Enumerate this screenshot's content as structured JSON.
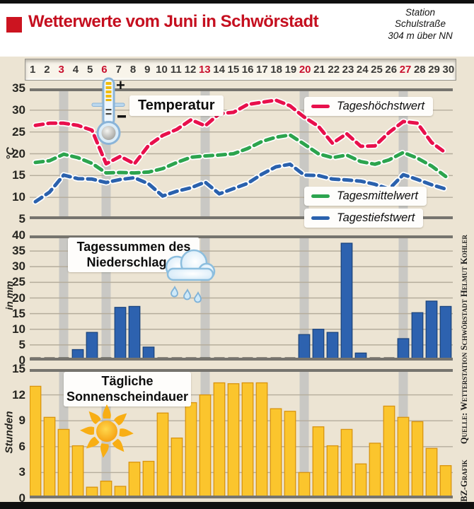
{
  "header": {
    "title": "Wetterwerte vom Juni in Schwörstadt",
    "station_lines": [
      "Station",
      "Schulstraße",
      "304 m über NN"
    ]
  },
  "day_axis": {
    "days": [
      1,
      2,
      3,
      4,
      5,
      6,
      7,
      8,
      9,
      10,
      11,
      12,
      13,
      14,
      15,
      16,
      17,
      18,
      19,
      20,
      21,
      22,
      23,
      24,
      25,
      26,
      27,
      28,
      29,
      30
    ],
    "highlight_days": [
      3,
      6,
      13,
      20,
      27
    ]
  },
  "colors": {
    "accent_red": "#c50f1f",
    "day_red": "#c8102e",
    "beige_bg": "#ece4d3",
    "band_gray": "#c9c8c4",
    "gridline": "#b5ad9c",
    "axis_dark": "#76746e",
    "baseline_dash": "#55524a",
    "line_casing": "#ffffff",
    "temp_max_red": "#e8104c",
    "temp_mean_green": "#2ca44e",
    "temp_min_blue": "#2a61ad",
    "rain_bar": "#2d62af",
    "rain_bar_border": "#1c457e",
    "sun_bar": "#fbc52d",
    "sun_bar_border": "#d9940f"
  },
  "source": {
    "quelle": "Quelle: Wetterstation Schwörstadt Helmut Kohler",
    "credit": "BZ-Grafik"
  },
  "chart_data": [
    {
      "type": "line",
      "title": "Temperatur",
      "ylabel": "°C",
      "ylim": [
        5,
        35
      ],
      "yticks": [
        5,
        10,
        15,
        20,
        25,
        30,
        35
      ],
      "grid": true,
      "legend_position": "right-inside",
      "categories": [
        1,
        2,
        3,
        4,
        5,
        6,
        7,
        8,
        9,
        10,
        11,
        12,
        13,
        14,
        15,
        16,
        17,
        18,
        19,
        20,
        21,
        22,
        23,
        24,
        25,
        26,
        27,
        28,
        29,
        30
      ],
      "series": [
        {
          "name": "Tageshöchstwert",
          "color": "#e8104c",
          "values": [
            26.5,
            27.0,
            27.0,
            26.5,
            25.4,
            17.7,
            19.4,
            17.7,
            21.9,
            24.2,
            25.6,
            27.8,
            26.4,
            29.2,
            29.5,
            31.3,
            31.8,
            32.3,
            31.0,
            28.4,
            26.3,
            22.4,
            24.6,
            21.7,
            21.8,
            24.9,
            27.4,
            27.0,
            22.6,
            20.2
          ]
        },
        {
          "name": "Tagesmittelwert",
          "color": "#2ca44e",
          "values": [
            18.0,
            18.4,
            19.9,
            19.1,
            17.8,
            15.6,
            15.7,
            15.6,
            15.8,
            16.6,
            18.0,
            19.2,
            19.5,
            19.7,
            20.0,
            21.2,
            22.8,
            23.8,
            24.3,
            22.2,
            20.0,
            19.1,
            19.7,
            18.2,
            17.6,
            18.6,
            20.3,
            19.0,
            17.2,
            14.8
          ]
        },
        {
          "name": "Tagestiefstwert",
          "color": "#2a61ad",
          "values": [
            9.0,
            11.2,
            15.1,
            14.3,
            14.2,
            13.4,
            14.1,
            14.5,
            13.1,
            10.3,
            11.4,
            12.2,
            13.5,
            10.8,
            12.0,
            13.2,
            15.3,
            17.0,
            17.6,
            15.1,
            15.0,
            14.2,
            14.0,
            13.7,
            13.0,
            11.9,
            15.2,
            14.1,
            12.9,
            11.9
          ]
        }
      ]
    },
    {
      "type": "bar",
      "title": "Tagessummen des Niederschlages",
      "title_lines": [
        "Tagessummen des",
        "Niederschlages"
      ],
      "ylabel": "in mm",
      "ylim": [
        0,
        40
      ],
      "yticks": [
        0,
        5,
        10,
        15,
        20,
        25,
        30,
        35,
        40
      ],
      "grid": true,
      "baseline_dashes": true,
      "bar_color": "#2d62af",
      "bar_border": "#1c457e",
      "categories": [
        1,
        2,
        3,
        4,
        5,
        6,
        7,
        8,
        9,
        10,
        11,
        12,
        13,
        14,
        15,
        16,
        17,
        18,
        19,
        20,
        21,
        22,
        23,
        24,
        25,
        26,
        27,
        28,
        29,
        30
      ],
      "values": [
        0,
        0.4,
        0,
        3.5,
        9.0,
        0.6,
        17.0,
        17.3,
        4.3,
        0,
        0,
        0,
        0,
        0,
        0,
        0,
        0,
        0,
        0,
        8.3,
        10.0,
        9.0,
        37.5,
        2.4,
        0,
        0,
        7.0,
        15.3,
        19.0,
        17.3
      ]
    },
    {
      "type": "bar",
      "title": "Tägliche Sonnenscheindauer",
      "title_lines": [
        "Tägliche",
        "Sonnenscheindauer"
      ],
      "ylabel": "Stunden",
      "ylim": [
        0,
        15
      ],
      "yticks": [
        0,
        3,
        6,
        9,
        12,
        15
      ],
      "grid": true,
      "baseline_dashes": false,
      "bar_color": "#fbc52d",
      "bar_border": "#d9940f",
      "categories": [
        1,
        2,
        3,
        4,
        5,
        6,
        7,
        8,
        9,
        10,
        11,
        12,
        13,
        14,
        15,
        16,
        17,
        18,
        19,
        20,
        21,
        22,
        23,
        24,
        25,
        26,
        27,
        28,
        29,
        30
      ],
      "values": [
        13.0,
        9.4,
        8.0,
        6.1,
        1.3,
        2.0,
        1.4,
        4.2,
        4.3,
        9.9,
        7.0,
        11.1,
        12.0,
        13.4,
        13.3,
        13.4,
        13.4,
        10.4,
        10.1,
        3.0,
        8.3,
        6.1,
        8.0,
        4.0,
        6.4,
        10.7,
        9.4,
        8.9,
        5.8,
        3.8
      ]
    }
  ]
}
